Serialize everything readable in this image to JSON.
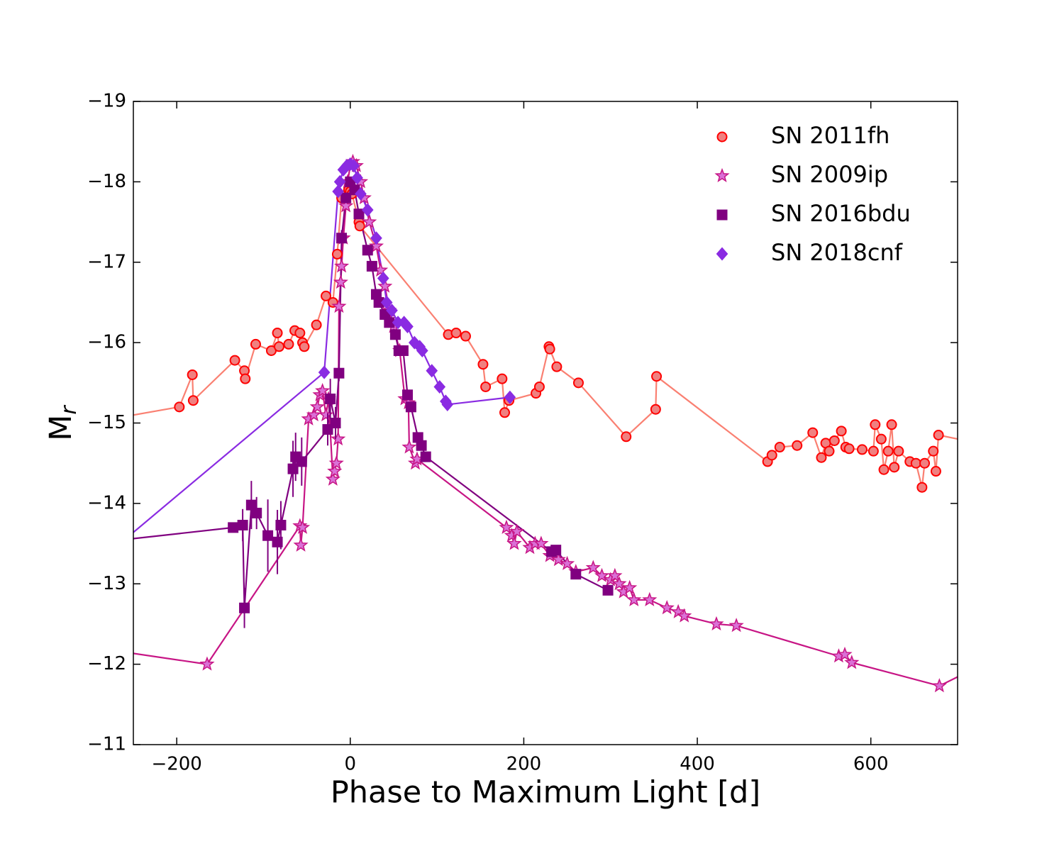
{
  "chart_data": {
    "type": "line",
    "xlabel": "Phase to Maximum Light [d]",
    "ylabel": "M",
    "ylabel_subscript": "r",
    "xlim": [
      -250,
      700
    ],
    "ylim": [
      -11,
      -19
    ],
    "xticks": [
      {
        "value": -200,
        "label": "−200"
      },
      0,
      200,
      400,
      600
    ],
    "yticks": [
      {
        "value": -11,
        "label": "−11"
      },
      {
        "value": -12,
        "label": "−12"
      },
      {
        "value": -13,
        "label": "−13"
      },
      {
        "value": -14,
        "label": "−14"
      },
      {
        "value": -15,
        "label": "−15"
      },
      {
        "value": -16,
        "label": "−16"
      },
      {
        "value": -17,
        "label": "−17"
      },
      {
        "value": -18,
        "label": "−18"
      },
      {
        "value": -19,
        "label": "−19"
      }
    ],
    "legend": "upper right",
    "series": [
      {
        "name": "SN 2011fh",
        "color": "#fa8072",
        "marker": "circle",
        "marker_color": "#f08080",
        "marker_edge": "#ff0000",
        "x": [
          -260,
          -197,
          -182,
          -181,
          -133,
          -122,
          -121,
          -109,
          -91,
          -84,
          -82,
          -71,
          -64,
          -58,
          -55,
          -53,
          -39,
          -28,
          -20,
          -15,
          -10,
          -2,
          0,
          2,
          10,
          11,
          113,
          122,
          133,
          153,
          156,
          175,
          178,
          183,
          214,
          218,
          229,
          230,
          238,
          263,
          318,
          352,
          353,
          481,
          486,
          495,
          515,
          533,
          543,
          548,
          552,
          558,
          566,
          571,
          575,
          590,
          603,
          605,
          612,
          615,
          620,
          624,
          627,
          632,
          645,
          652,
          659,
          662,
          672,
          675,
          678,
          710
        ],
        "values": [
          -15.08,
          -15.2,
          -15.6,
          -15.28,
          -15.78,
          -15.65,
          -15.55,
          -15.98,
          -15.9,
          -16.12,
          -15.95,
          -15.98,
          -16.15,
          -16.12,
          -16.0,
          -15.95,
          -16.22,
          -16.58,
          -16.5,
          -17.1,
          -17.8,
          -17.9,
          -17.88,
          -17.85,
          -17.5,
          -17.45,
          -16.1,
          -16.12,
          -16.08,
          -15.73,
          -15.45,
          -15.55,
          -15.13,
          -15.28,
          -15.37,
          -15.45,
          -15.95,
          -15.92,
          -15.7,
          -15.5,
          -14.83,
          -15.17,
          -15.58,
          -14.52,
          -14.6,
          -14.7,
          -14.72,
          -14.88,
          -14.57,
          -14.75,
          -14.65,
          -14.78,
          -14.9,
          -14.7,
          -14.68,
          -14.67,
          -14.65,
          -14.98,
          -14.8,
          -14.42,
          -14.65,
          -14.98,
          -14.45,
          -14.65,
          -14.52,
          -14.5,
          -14.2,
          -14.5,
          -14.65,
          -14.4,
          -14.85,
          -14.78
        ]
      },
      {
        "name": "SN 2009ip",
        "color": "#c71585",
        "marker": "star",
        "marker_color": "#da70d6",
        "marker_edge": "#c71585",
        "x": [
          -260,
          -165,
          -58,
          -57,
          -55,
          -48,
          -42,
          -38,
          -35,
          -32,
          -28,
          -25,
          -20,
          -18,
          -16,
          -14,
          -13,
          -11,
          -10,
          -8,
          -5,
          -3,
          0,
          3,
          7,
          12,
          16,
          22,
          30,
          35,
          40,
          45,
          50,
          57,
          63,
          67,
          68,
          75,
          77,
          180,
          186,
          189,
          192,
          207,
          213,
          220,
          230,
          240,
          250,
          260,
          280,
          290,
          300,
          305,
          310,
          315,
          322,
          327,
          345,
          365,
          378,
          385,
          422,
          445,
          563,
          570,
          578,
          679,
          720
        ],
        "values": [
          -12.15,
          -12.0,
          -13.72,
          -13.48,
          -13.7,
          -15.05,
          -15.1,
          -15.2,
          -15.35,
          -15.4,
          -15.1,
          -15.3,
          -14.3,
          -14.4,
          -14.5,
          -14.8,
          -16.45,
          -16.75,
          -16.95,
          -17.3,
          -17.7,
          -18.0,
          -18.2,
          -18.25,
          -18.2,
          -18.0,
          -17.8,
          -17.5,
          -17.2,
          -16.9,
          -16.7,
          -16.4,
          -16.2,
          -15.9,
          -15.3,
          -15.25,
          -14.7,
          -14.5,
          -14.55,
          -13.7,
          -13.6,
          -13.5,
          -13.65,
          -13.45,
          -13.5,
          -13.5,
          -13.35,
          -13.3,
          -13.25,
          -13.15,
          -13.2,
          -13.1,
          -13.05,
          -13.1,
          -13.0,
          -12.9,
          -12.95,
          -12.8,
          -12.8,
          -12.7,
          -12.65,
          -12.6,
          -12.5,
          -12.48,
          -12.1,
          -12.12,
          -12.02,
          -11.73,
          -11.95
        ]
      },
      {
        "name": "SN 2016bdu",
        "color": "#800080",
        "marker": "square",
        "marker_color": "#800080",
        "marker_edge": "#800080",
        "x": [
          -260,
          -135,
          -124,
          -122,
          -114,
          -108,
          -95,
          -84,
          -80,
          -66,
          -63,
          -56,
          -26,
          -23,
          -17,
          -13,
          -10,
          -5,
          0,
          5,
          10,
          20,
          25,
          30,
          33,
          40,
          45,
          52,
          56,
          61,
          66,
          70,
          78,
          82,
          87,
          232,
          237,
          260,
          297
        ],
        "values": [
          -13.55,
          -13.7,
          -13.73,
          -12.7,
          -13.98,
          -13.88,
          -13.6,
          -13.52,
          -13.73,
          -14.43,
          -14.58,
          -14.52,
          -14.92,
          -15.3,
          -15.0,
          -15.62,
          -17.3,
          -17.8,
          -18.0,
          -17.9,
          -17.6,
          -17.15,
          -16.95,
          -16.6,
          -16.5,
          -16.35,
          -16.25,
          -16.1,
          -15.9,
          -15.9,
          -15.35,
          -15.2,
          -14.82,
          -14.72,
          -14.58,
          -13.4,
          -13.42,
          -13.12,
          -12.92
        ],
        "errors": [
          0,
          0.05,
          0.2,
          0.25,
          0.3,
          0.2,
          0.45,
          0.4,
          0.3,
          0.35,
          0.3,
          0.3,
          0.2,
          0.25,
          0.2,
          0.1,
          0.1,
          0.05,
          0.05,
          0.05,
          0.05,
          0.05,
          0.05,
          0.05,
          0.05,
          0.05,
          0.05,
          0.05,
          0.05,
          0.05,
          0.05,
          0.05,
          0.05,
          0.05,
          0.05,
          0.05,
          0.05,
          0.05,
          0.05
        ]
      },
      {
        "name": "SN 2018cnf",
        "color": "#8a2be2",
        "marker": "diamond",
        "marker_color": "#8a2be2",
        "marker_edge": "#8a2be2",
        "x": [
          -260,
          -30,
          -14,
          -12,
          -8,
          -4,
          0,
          4,
          8,
          12,
          20,
          30,
          38,
          42,
          48,
          55,
          62,
          66,
          74,
          80,
          83,
          94,
          103,
          110,
          112,
          184
        ],
        "values": [
          -13.55,
          -15.63,
          -17.88,
          -18.0,
          -18.15,
          -18.2,
          -18.22,
          -18.2,
          -18.05,
          -17.85,
          -17.65,
          -17.3,
          -16.8,
          -16.5,
          -16.4,
          -16.25,
          -16.25,
          -16.2,
          -16.0,
          -15.95,
          -15.9,
          -15.65,
          -15.45,
          -15.27,
          -15.23,
          -15.32
        ]
      }
    ]
  }
}
